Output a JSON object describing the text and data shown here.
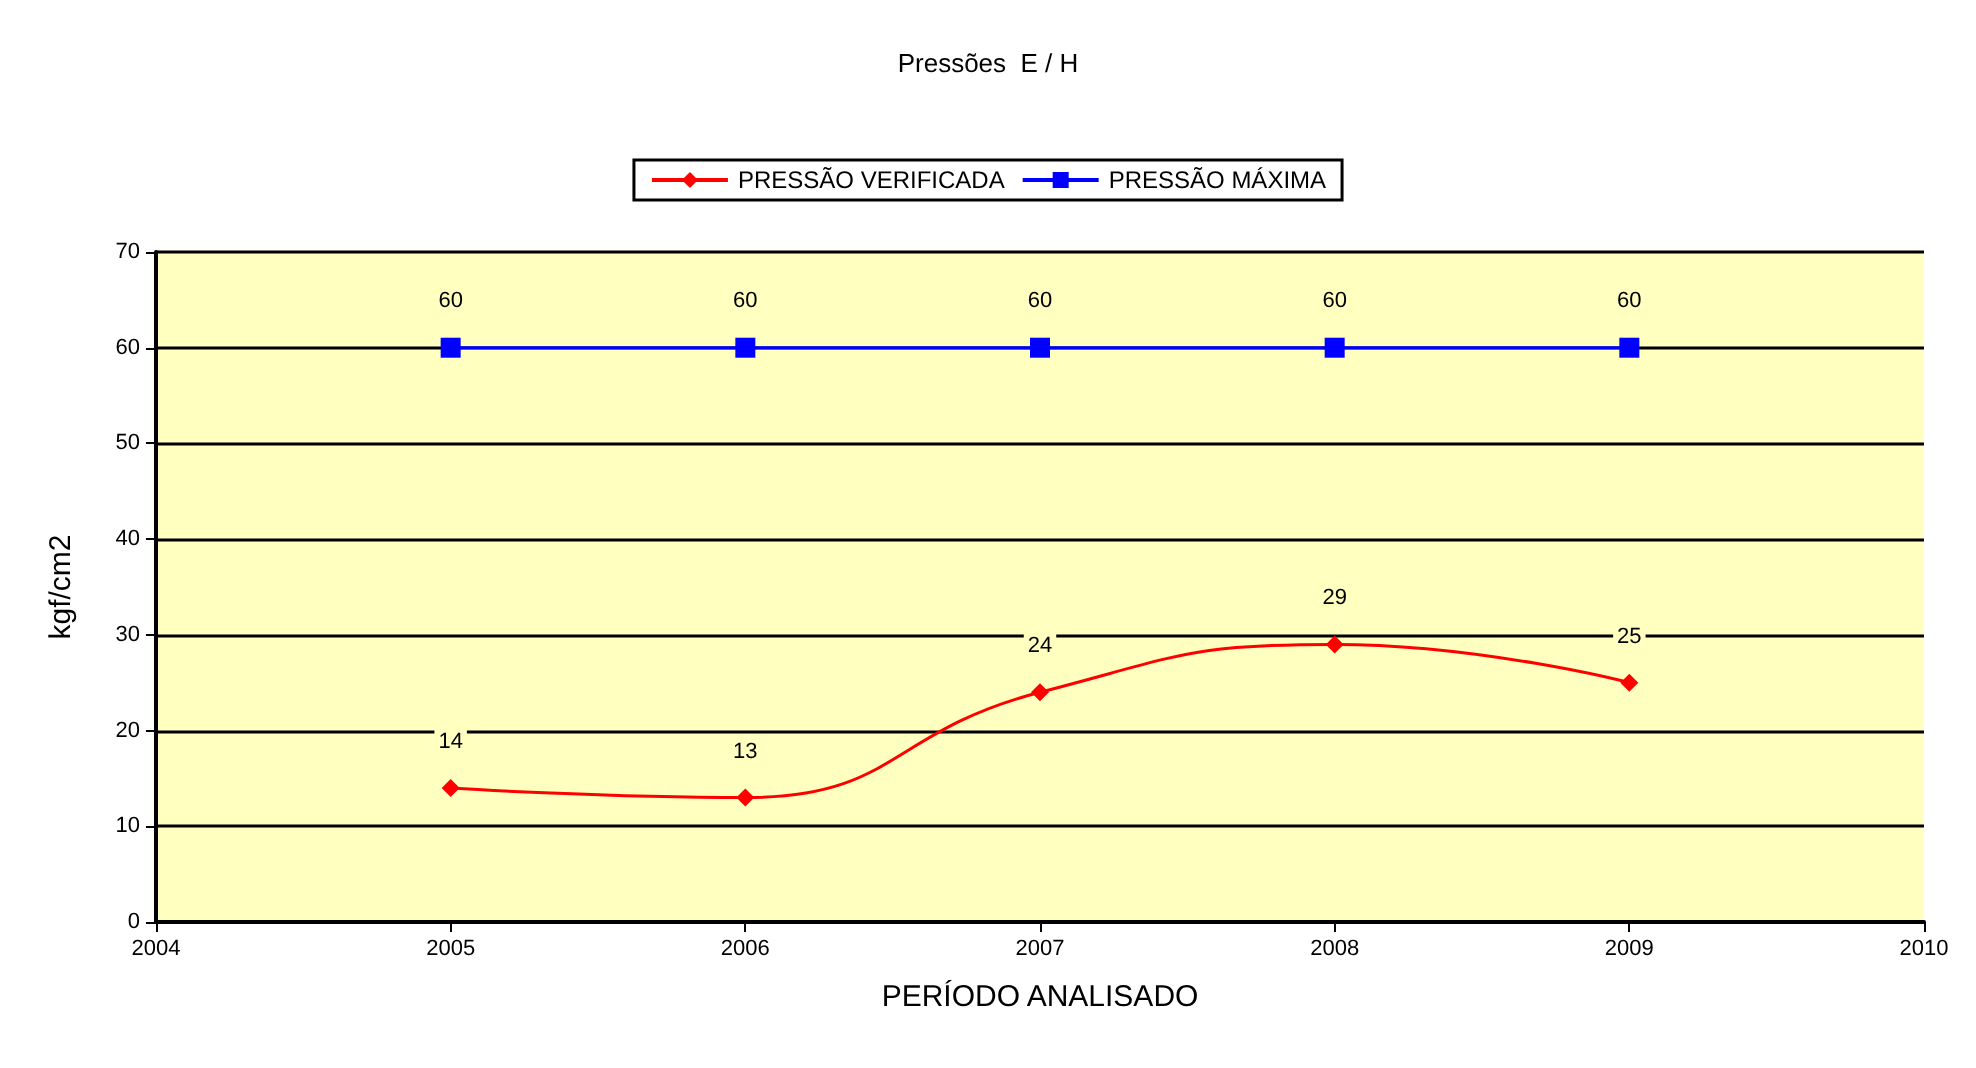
{
  "chart_data": {
    "type": "line",
    "title": "Pressões  E / H",
    "xlabel": "PERÍODO ANALISADO",
    "ylabel": "kgf/cm2",
    "x": [
      2005,
      2006,
      2007,
      2008,
      2009
    ],
    "series": [
      {
        "name": "PRESSÃO VERIFICADA",
        "color": "#ff0000",
        "marker": "diamond",
        "values": [
          14,
          13,
          24,
          29,
          25
        ]
      },
      {
        "name": "PRESSÃO MÁXIMA",
        "color": "#0000ff",
        "marker": "square",
        "values": [
          60,
          60,
          60,
          60,
          60
        ]
      }
    ],
    "xlim": [
      2004,
      2010
    ],
    "xticks": [
      2004,
      2005,
      2006,
      2007,
      2008,
      2009,
      2010
    ],
    "ylim": [
      0,
      70
    ],
    "yticks": [
      0,
      10,
      20,
      30,
      40,
      50,
      60,
      70
    ],
    "grid": "y",
    "legend": "top",
    "data_labels": true
  }
}
